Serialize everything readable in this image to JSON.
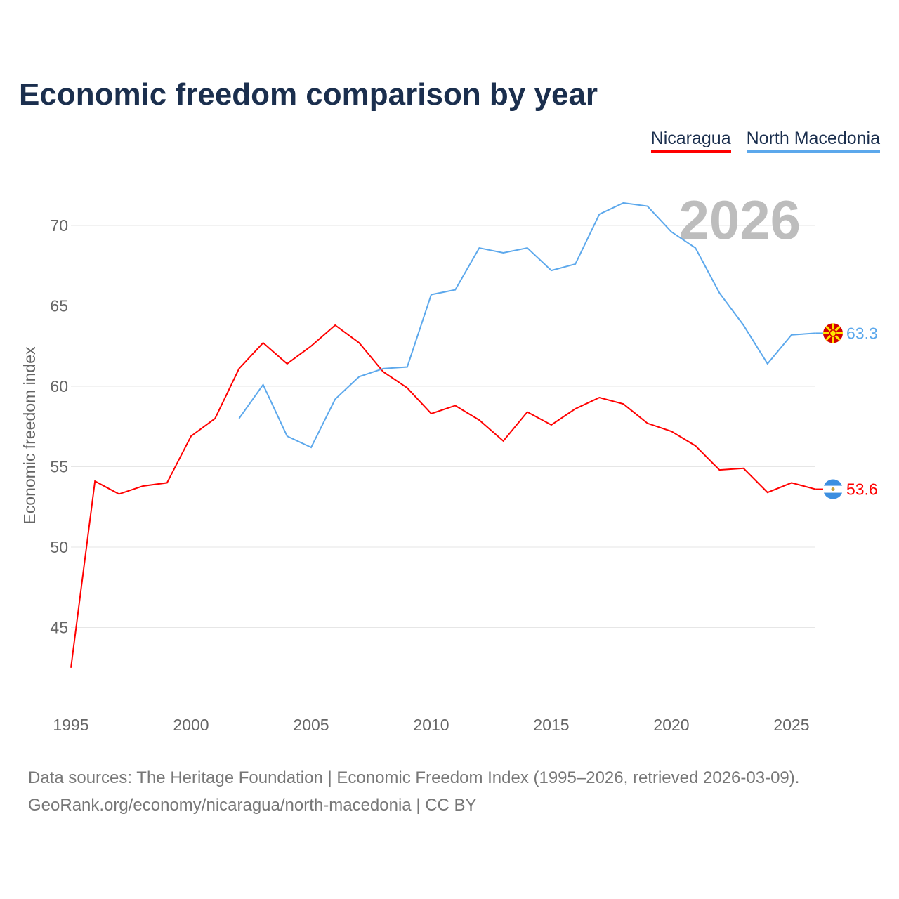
{
  "title": "Economic freedom comparison by year",
  "legend": [
    {
      "name": "Nicaragua",
      "color": "#ff0000"
    },
    {
      "name": "North Macedonia",
      "color": "#5ca8ec"
    }
  ],
  "footer": {
    "line1": "Data sources: The Heritage Foundation | Economic Freedom Index (1995–2026, retrieved 2026-03-09).",
    "line2": "GeoRank.org/economy/nicaragua/north-macedonia | CC BY"
  },
  "chart_data": {
    "type": "line",
    "title": "Economic freedom comparison by year",
    "xlabel": "",
    "ylabel": "Economic freedom index",
    "year_label": "2026",
    "xlim": [
      1995,
      2026
    ],
    "ylim": [
      40,
      73.5
    ],
    "xticks": [
      1995,
      2000,
      2005,
      2010,
      2015,
      2020,
      2025
    ],
    "yticks": [
      45,
      50,
      55,
      60,
      65,
      70
    ],
    "grid": true,
    "legend_position": "top-right",
    "series": [
      {
        "name": "Nicaragua",
        "color": "#ff0000",
        "end_label": "53.6",
        "x": [
          1995,
          1996,
          1997,
          1998,
          1999,
          2000,
          2001,
          2002,
          2003,
          2004,
          2005,
          2006,
          2007,
          2008,
          2009,
          2010,
          2011,
          2012,
          2013,
          2014,
          2015,
          2016,
          2017,
          2018,
          2019,
          2020,
          2021,
          2022,
          2023,
          2024,
          2025,
          2026
        ],
        "y": [
          42.5,
          54.1,
          53.3,
          53.8,
          54.0,
          56.9,
          58.0,
          61.1,
          62.7,
          61.4,
          62.5,
          63.8,
          62.7,
          60.9,
          59.9,
          58.3,
          58.8,
          57.9,
          56.6,
          58.4,
          57.6,
          58.6,
          59.3,
          58.9,
          57.7,
          57.2,
          56.3,
          54.8,
          54.9,
          53.4,
          54.0,
          53.6
        ]
      },
      {
        "name": "North Macedonia",
        "color": "#5ca8ec",
        "end_label": "63.3",
        "x": [
          2002,
          2003,
          2004,
          2005,
          2006,
          2007,
          2008,
          2009,
          2010,
          2011,
          2012,
          2013,
          2014,
          2015,
          2016,
          2017,
          2018,
          2019,
          2020,
          2021,
          2022,
          2023,
          2024,
          2025,
          2026
        ],
        "y": [
          58.0,
          60.1,
          56.9,
          56.2,
          59.2,
          60.6,
          61.1,
          61.2,
          65.7,
          66.0,
          68.6,
          68.3,
          68.6,
          67.2,
          67.6,
          70.7,
          71.4,
          71.2,
          69.6,
          68.6,
          65.8,
          63.8,
          61.4,
          63.2,
          63.3
        ]
      }
    ]
  }
}
